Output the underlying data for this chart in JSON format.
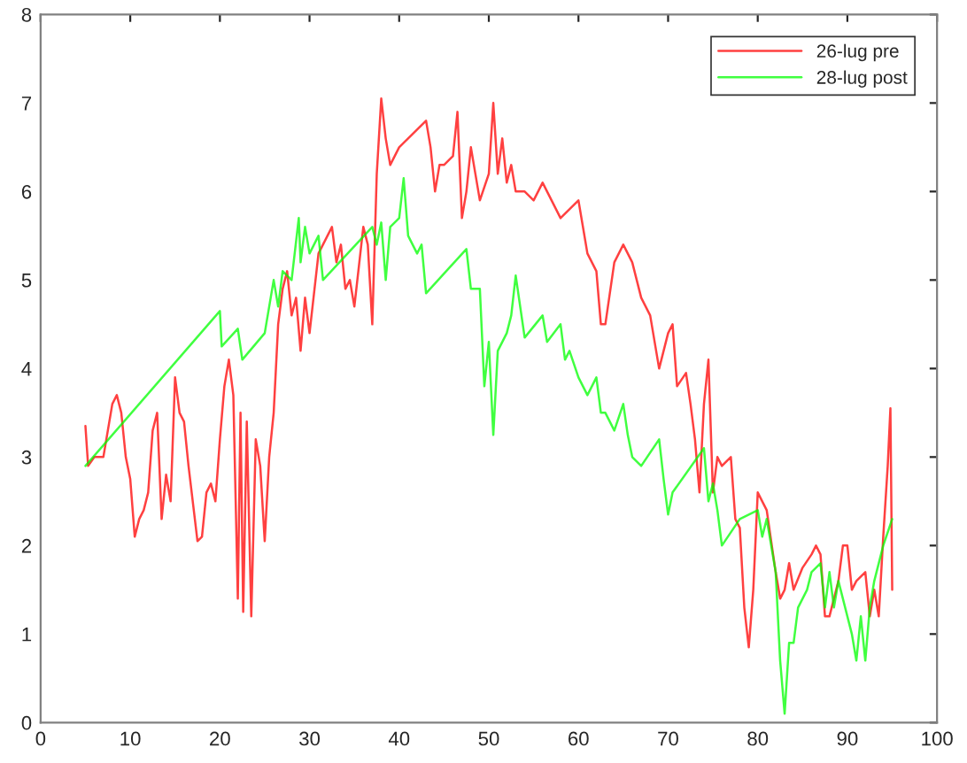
{
  "chart_data": {
    "type": "line",
    "xlim": [
      0,
      100
    ],
    "ylim": [
      0,
      8
    ],
    "xticks": [
      0,
      10,
      20,
      30,
      40,
      50,
      60,
      70,
      80,
      90,
      100
    ],
    "yticks": [
      0,
      1,
      2,
      3,
      4,
      5,
      6,
      7,
      8
    ],
    "grid": false,
    "legend": "top right",
    "marker": "none",
    "line_style": "solid",
    "series": [
      {
        "name": "26-lug pre",
        "color": "#ff0000",
        "x": [
          5,
          5.3,
          6,
          7,
          8,
          8.5,
          9,
          9.5,
          10,
          10.5,
          11,
          11.5,
          12,
          12.5,
          13,
          13.5,
          14,
          14.5,
          15,
          15.5,
          16,
          16.5,
          17.5,
          18,
          18.5,
          19,
          19.5,
          20,
          20.5,
          21,
          21.5,
          22,
          22.3,
          22.6,
          23,
          23.5,
          24,
          24.5,
          25,
          25.5,
          26,
          26.5,
          27,
          27.5,
          28,
          28.5,
          29,
          29.5,
          30,
          31,
          32,
          32.5,
          33,
          33.5,
          34,
          34.5,
          35,
          36,
          36.5,
          37,
          37.5,
          38,
          38.5,
          39,
          40,
          42,
          43,
          43.5,
          44,
          44.5,
          45,
          46,
          46.5,
          47,
          47.5,
          48,
          48.5,
          49,
          50,
          50.5,
          51,
          51.5,
          52,
          52.5,
          53,
          54,
          55,
          56,
          57,
          58,
          59,
          60,
          61,
          62,
          62.5,
          63,
          64,
          65,
          66,
          67,
          68,
          69,
          70,
          70.5,
          71,
          72,
          72.5,
          73,
          73.5,
          74,
          74.5,
          75,
          75.5,
          76,
          77,
          77.5,
          78,
          78.5,
          79,
          79.5,
          80,
          81,
          82,
          82.5,
          83,
          83.5,
          84,
          85,
          86,
          86.5,
          87,
          87.5,
          88,
          89,
          89.5,
          90,
          90.5,
          91,
          92,
          92.5,
          93,
          93.5,
          94,
          94.5,
          94.8,
          95
        ],
        "values": [
          3.35,
          2.9,
          3.0,
          3.0,
          3.6,
          3.7,
          3.5,
          3.0,
          2.75,
          2.1,
          2.3,
          2.4,
          2.6,
          3.3,
          3.5,
          2.3,
          2.8,
          2.5,
          3.9,
          3.5,
          3.4,
          2.9,
          2.05,
          2.1,
          2.6,
          2.7,
          2.5,
          3.2,
          3.8,
          4.1,
          3.7,
          1.4,
          3.5,
          1.25,
          3.4,
          1.2,
          3.2,
          2.9,
          2.05,
          3.0,
          3.5,
          4.5,
          4.9,
          5.1,
          4.6,
          4.8,
          4.2,
          4.8,
          4.4,
          5.3,
          5.5,
          5.6,
          5.2,
          5.4,
          4.9,
          5.0,
          4.7,
          5.6,
          5.4,
          4.5,
          6.2,
          7.05,
          6.6,
          6.3,
          6.5,
          6.7,
          6.8,
          6.5,
          6.0,
          6.3,
          6.3,
          6.4,
          6.9,
          5.7,
          6.0,
          6.5,
          6.2,
          5.9,
          6.2,
          7.0,
          6.2,
          6.6,
          6.1,
          6.3,
          6.0,
          6.0,
          5.9,
          6.1,
          5.9,
          5.7,
          5.8,
          5.9,
          5.3,
          5.1,
          4.5,
          4.5,
          5.2,
          5.4,
          5.2,
          4.8,
          4.6,
          4.0,
          4.4,
          4.5,
          3.8,
          3.95,
          3.6,
          3.2,
          2.6,
          3.6,
          4.1,
          2.6,
          3.0,
          2.9,
          3.0,
          2.3,
          2.2,
          1.3,
          0.85,
          1.5,
          2.6,
          2.4,
          1.7,
          1.4,
          1.5,
          1.8,
          1.5,
          1.75,
          1.9,
          2.0,
          1.9,
          1.2,
          1.2,
          1.6,
          2.0,
          2.0,
          1.5,
          1.6,
          1.7,
          1.2,
          1.5,
          1.2,
          2.1,
          2.9,
          3.55,
          1.5
        ]
      },
      {
        "name": "28-lug post",
        "color": "#00ff00",
        "x": [
          5,
          20,
          20.2,
          22,
          22.5,
          25,
          26,
          26.5,
          27,
          28,
          28.8,
          29,
          29.5,
          30,
          31,
          31.5,
          37,
          37.5,
          38,
          38.5,
          39,
          40,
          40.5,
          41,
          42,
          42.5,
          43,
          47.5,
          48,
          49,
          49.5,
          50,
          50.5,
          51,
          52,
          52.5,
          53,
          54,
          56,
          56.5,
          58,
          58.5,
          59,
          60,
          61,
          62,
          62.5,
          63,
          64,
          65,
          65.5,
          66,
          67,
          69,
          69.5,
          70,
          70.5,
          74,
          74.5,
          75,
          75.5,
          76,
          78,
          80,
          80.5,
          81,
          82,
          82.5,
          83,
          83.5,
          84,
          84.5,
          85.5,
          86,
          87,
          87.5,
          88,
          88.5,
          89,
          90,
          90.5,
          91,
          91.5,
          92,
          92.5,
          93,
          94,
          95
        ],
        "values": [
          2.9,
          4.65,
          4.25,
          4.45,
          4.1,
          4.4,
          5.0,
          4.7,
          5.1,
          5.0,
          5.7,
          5.2,
          5.6,
          5.3,
          5.5,
          5.0,
          5.6,
          5.4,
          5.65,
          5.0,
          5.6,
          5.7,
          6.15,
          5.5,
          5.3,
          5.4,
          4.85,
          5.35,
          4.9,
          4.9,
          3.8,
          4.3,
          3.25,
          4.2,
          4.4,
          4.6,
          5.05,
          4.35,
          4.6,
          4.3,
          4.5,
          4.1,
          4.2,
          3.9,
          3.7,
          3.9,
          3.5,
          3.5,
          3.3,
          3.6,
          3.25,
          3.0,
          2.9,
          3.2,
          2.75,
          2.35,
          2.6,
          3.1,
          2.5,
          2.7,
          2.4,
          2.0,
          2.3,
          2.4,
          2.1,
          2.3,
          1.7,
          0.7,
          0.1,
          0.9,
          0.9,
          1.3,
          1.5,
          1.7,
          1.8,
          1.3,
          1.7,
          1.3,
          1.6,
          1.2,
          1.0,
          0.7,
          1.2,
          0.7,
          1.3,
          1.6,
          2.0,
          2.3
        ]
      }
    ]
  }
}
